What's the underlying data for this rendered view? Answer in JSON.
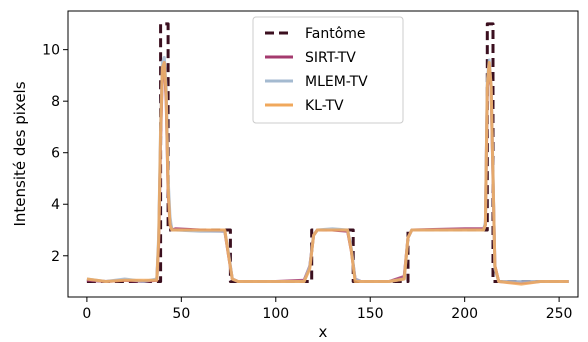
{
  "chart_data": {
    "type": "line",
    "xlabel": "x",
    "ylabel": "Intensité des pixels",
    "xlim": [
      -10,
      260
    ],
    "ylim": [
      0.4,
      11.5
    ],
    "xticks": [
      0,
      50,
      100,
      150,
      200,
      250
    ],
    "yticks": [
      2,
      4,
      6,
      8,
      10
    ],
    "grid": false,
    "legend_position": "top-center",
    "series": [
      {
        "name": "Fantôme",
        "color": "#3b0f1f",
        "style": "dashed",
        "x": [
          0,
          39,
          39,
          43,
          43,
          76,
          76,
          119,
          119,
          141,
          141,
          170,
          170,
          212,
          212,
          215,
          215,
          255
        ],
        "y": [
          1.0,
          1.0,
          11.0,
          11.0,
          3.0,
          3.0,
          1.0,
          1.0,
          3.0,
          3.0,
          1.0,
          1.0,
          3.0,
          3.0,
          11.0,
          11.0,
          1.0,
          1.0
        ]
      },
      {
        "name": "SIRT-TV",
        "color": "#a43a6e",
        "style": "solid",
        "x": [
          0,
          10,
          20,
          30,
          37,
          38,
          39,
          40,
          41,
          42,
          43,
          44,
          45,
          47,
          60,
          73,
          75,
          77,
          80,
          100,
          115,
          118,
          120,
          122,
          130,
          138,
          140,
          142,
          145,
          160,
          168,
          170,
          172,
          200,
          210,
          211,
          212,
          213,
          214,
          215,
          216,
          218,
          230,
          240,
          255
        ],
        "y": [
          1.05,
          1.0,
          1.05,
          1.0,
          1.05,
          2.5,
          6.5,
          9.2,
          9.5,
          8.0,
          4.5,
          3.3,
          3.0,
          3.05,
          3.0,
          2.95,
          2.0,
          1.1,
          1.0,
          1.0,
          1.05,
          1.6,
          2.8,
          3.0,
          3.0,
          2.95,
          2.2,
          1.1,
          1.0,
          1.0,
          1.2,
          2.7,
          3.0,
          3.05,
          3.05,
          3.2,
          8.5,
          9.4,
          8.5,
          5.0,
          1.6,
          1.0,
          0.95,
          1.0,
          1.0
        ]
      },
      {
        "name": "MLEM-TV",
        "color": "#a4bad0",
        "style": "solid",
        "x": [
          0,
          10,
          20,
          30,
          37,
          38,
          39,
          40,
          41,
          42,
          43,
          44,
          45,
          47,
          60,
          73,
          75,
          77,
          80,
          100,
          115,
          118,
          120,
          122,
          130,
          138,
          140,
          142,
          145,
          160,
          168,
          170,
          172,
          200,
          210,
          211,
          212,
          213,
          214,
          215,
          216,
          218,
          230,
          240,
          255
        ],
        "y": [
          1.1,
          1.0,
          1.1,
          1.0,
          1.1,
          2.8,
          7.0,
          9.5,
          9.7,
          8.5,
          5.0,
          3.5,
          3.0,
          3.0,
          2.95,
          2.95,
          2.1,
          1.1,
          1.0,
          1.0,
          1.0,
          1.6,
          2.8,
          3.0,
          3.05,
          3.0,
          2.3,
          1.1,
          1.0,
          1.0,
          1.1,
          2.7,
          3.0,
          3.0,
          3.0,
          3.3,
          8.8,
          9.6,
          8.6,
          5.2,
          1.5,
          1.0,
          1.0,
          1.0,
          1.0
        ]
      },
      {
        "name": "KL-TV",
        "color": "#f0a85c",
        "style": "solid",
        "x": [
          0,
          10,
          20,
          30,
          37,
          38,
          39,
          40,
          41,
          42,
          43,
          44,
          45,
          47,
          60,
          73,
          75,
          77,
          80,
          100,
          115,
          118,
          120,
          122,
          130,
          138,
          140,
          142,
          145,
          160,
          168,
          170,
          172,
          200,
          210,
          211,
          212,
          213,
          214,
          215,
          216,
          218,
          230,
          240,
          255
        ],
        "y": [
          1.1,
          1.0,
          1.05,
          1.05,
          1.05,
          2.6,
          6.8,
          9.3,
          9.5,
          8.2,
          4.6,
          3.2,
          3.0,
          3.0,
          3.0,
          3.0,
          2.0,
          1.1,
          1.0,
          1.0,
          1.0,
          1.5,
          2.8,
          3.0,
          3.0,
          3.0,
          2.2,
          1.0,
          1.0,
          1.0,
          1.1,
          2.7,
          3.0,
          3.0,
          3.0,
          3.2,
          8.6,
          9.5,
          8.6,
          5.1,
          1.6,
          1.0,
          0.9,
          1.0,
          1.0
        ]
      }
    ]
  }
}
